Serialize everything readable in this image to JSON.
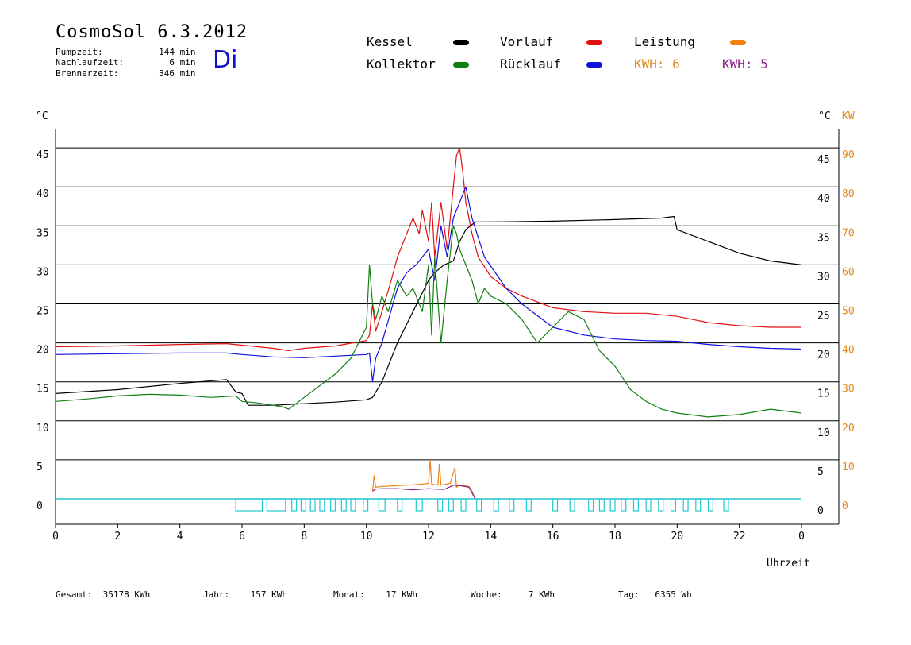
{
  "header": {
    "title": "CosmoSol 6.3.2012",
    "day": "Di",
    "stats": [
      {
        "label": "Pumpzeit:",
        "value": "144",
        "unit": "min"
      },
      {
        "label": "Nachlaufzeit:",
        "value": "6",
        "unit": "min"
      },
      {
        "label": "Brennerzeit:",
        "value": "346",
        "unit": "min"
      }
    ]
  },
  "legend": {
    "kessel": {
      "label": "Kessel",
      "color": "#000000"
    },
    "vorlauf": {
      "label": "Vorlauf",
      "color": "#e01010"
    },
    "leistung": {
      "label": "Leistung",
      "color": "#f08010"
    },
    "kollektor": {
      "label": "Kollektor",
      "color": "#108010"
    },
    "ruecklauf": {
      "label": "Rücklauf",
      "color": "#1010e0"
    },
    "kwh1": "KWH: 6",
    "kwh1_color": "#e08a20",
    "kwh2": "KWH: 5",
    "kwh2_color": "#8a208a"
  },
  "axes": {
    "left_unit": "°C",
    "right_unit_c": "°C",
    "right_unit_kw": "KW",
    "x_label": "Uhrzeit"
  },
  "footer": {
    "gesamt": "Gesamt:  35178 KWh",
    "jahr": "Jahr:    157 KWh",
    "monat": "Monat:    17 KWh",
    "woche": "Woche:     7 KWh",
    "tag": "Tag:   6355 Wh"
  },
  "chart_data": {
    "type": "line",
    "title": "CosmoSol 6.3.2012",
    "xlabel": "Uhrzeit",
    "ylabel": "°C",
    "y2label": "KW",
    "xlim": [
      0,
      24
    ],
    "ylim": [
      -3,
      48
    ],
    "y2lim": [
      -6,
      96
    ],
    "x_ticks": [
      "0",
      "2",
      "4",
      "6",
      "8",
      "10",
      "12",
      "14",
      "16",
      "18",
      "20",
      "22",
      "0"
    ],
    "y_ticks": [
      0,
      5,
      10,
      15,
      20,
      25,
      30,
      35,
      40,
      45
    ],
    "y2_ticks": [
      0,
      10,
      20,
      30,
      40,
      50,
      60,
      70,
      80,
      90
    ],
    "grid": true,
    "series": [
      {
        "name": "Kessel",
        "color": "#000000",
        "x": [
          0,
          2,
          4,
          5.5,
          5.8,
          6,
          6.2,
          7,
          8,
          9,
          10,
          10.2,
          10.5,
          11,
          11.5,
          12,
          12.2,
          12.5,
          12.8,
          13,
          13.2,
          13.5,
          14,
          16,
          18,
          19.5,
          19.9,
          20,
          21,
          22,
          23,
          24
        ],
        "y": [
          13.5,
          14,
          14.8,
          15.3,
          13.7,
          13.5,
          12,
          12,
          12.2,
          12.4,
          12.7,
          13,
          15,
          20,
          24,
          28,
          29,
          30,
          30.5,
          33,
          34.5,
          35.5,
          35.5,
          35.6,
          35.8,
          36,
          36.2,
          34.5,
          33,
          31.5,
          30.5,
          30
        ]
      },
      {
        "name": "Vorlauf",
        "color": "#e01010",
        "x": [
          0,
          2,
          4,
          5.5,
          6,
          7,
          7.5,
          8,
          9,
          10,
          10.1,
          10.2,
          10.3,
          10.5,
          10.8,
          11,
          11.2,
          11.5,
          11.7,
          11.8,
          12,
          12.1,
          12.2,
          12.4,
          12.6,
          12.8,
          12.9,
          13,
          13.1,
          13.2,
          13.4,
          13.6,
          14,
          14.5,
          15,
          16,
          17,
          18,
          19,
          20,
          21,
          22,
          23,
          24
        ],
        "y": [
          19.5,
          19.6,
          19.8,
          19.9,
          19.7,
          19.3,
          19.0,
          19.3,
          19.6,
          20.3,
          21,
          25,
          21.5,
          24,
          28,
          31,
          33,
          36,
          34,
          37,
          33,
          38,
          31,
          38,
          32,
          40,
          44,
          45,
          42,
          38,
          34,
          31,
          28.5,
          27,
          26,
          24.5,
          24,
          23.8,
          23.8,
          23.4,
          22.6,
          22.2,
          22,
          22
        ]
      },
      {
        "name": "Rücklauf",
        "color": "#1010e0",
        "x": [
          0,
          2,
          4,
          5.5,
          6,
          7,
          8,
          9,
          10,
          10.1,
          10.2,
          10.3,
          10.5,
          11,
          11.3,
          11.6,
          12,
          12.2,
          12.4,
          12.6,
          12.8,
          13,
          13.2,
          13.4,
          13.8,
          14.5,
          15,
          16,
          17,
          18,
          19,
          20,
          21,
          22,
          23,
          24
        ],
        "y": [
          18.5,
          18.6,
          18.7,
          18.7,
          18.5,
          18.2,
          18.1,
          18.3,
          18.5,
          18.7,
          15,
          18,
          20,
          27,
          29,
          30,
          32,
          28,
          35,
          31,
          36,
          38,
          40,
          36,
          31,
          27,
          25,
          22,
          21,
          20.5,
          20.3,
          20.2,
          19.8,
          19.5,
          19.3,
          19.2
        ]
      },
      {
        "name": "Kollektor",
        "color": "#108010",
        "x": [
          0,
          1,
          2,
          3,
          4,
          5,
          5.8,
          6,
          6.5,
          7,
          7.3,
          7.5,
          8,
          9,
          9.5,
          10,
          10.1,
          10.2,
          10.3,
          10.5,
          10.7,
          11,
          11.3,
          11.5,
          11.7,
          11.8,
          12,
          12.1,
          12.2,
          12.4,
          12.6,
          12.8,
          12.9,
          13,
          13.2,
          13.4,
          13.6,
          13.8,
          14,
          14.5,
          15,
          15.5,
          16,
          16.5,
          17,
          17.5,
          18,
          18.5,
          19,
          19.5,
          20,
          21,
          22,
          23,
          24
        ],
        "y": [
          12.5,
          12.8,
          13.2,
          13.4,
          13.3,
          13.0,
          13.2,
          12.5,
          12.3,
          12.0,
          11.8,
          11.5,
          13,
          16,
          18,
          22,
          30,
          25,
          23,
          26,
          24,
          28,
          26,
          27,
          25,
          24,
          30,
          21,
          31,
          20,
          28,
          35,
          34,
          32,
          30,
          28,
          25,
          27,
          26,
          25,
          23,
          20,
          22,
          24,
          23,
          19,
          17,
          14,
          12.5,
          11.5,
          11,
          10.5,
          10.8,
          11.5,
          11
        ]
      }
    ],
    "power": {
      "name": "Leistung",
      "color": "#f08010",
      "x": [
        10.2,
        10.25,
        10.3,
        10.5,
        11,
        11.5,
        11.8,
        12,
        12.05,
        12.1,
        12.3,
        12.35,
        12.4,
        12.7,
        12.85,
        12.9,
        13,
        13.3,
        13.4,
        13.5
      ],
      "y": [
        2,
        6,
        3,
        3.2,
        3.4,
        3.6,
        3.8,
        4,
        10,
        3.8,
        3.5,
        9,
        3.5,
        4,
        8,
        3,
        3.5,
        3.2,
        2,
        0
      ]
    },
    "pump": {
      "name": "KWH: 5",
      "color": "#8a208a",
      "x": [
        10.2,
        10.3,
        10.5,
        11,
        11.5,
        12,
        12.2,
        12.5,
        12.8,
        13,
        13.3,
        13.5
      ],
      "y": [
        2,
        2.5,
        2.6,
        2.6,
        2.3,
        2.6,
        2.5,
        2.4,
        3.5,
        3.4,
        3,
        0
      ]
    },
    "burner_color": "#20c8d0",
    "burner_intervals": [
      [
        5.8,
        6.65
      ],
      [
        6.8,
        7.4
      ],
      [
        7.6,
        7.75
      ],
      [
        7.9,
        8.05
      ],
      [
        8.2,
        8.35
      ],
      [
        8.5,
        8.65
      ],
      [
        8.85,
        9.0
      ],
      [
        9.2,
        9.35
      ],
      [
        9.5,
        9.65
      ],
      [
        9.9,
        10.05
      ],
      [
        10.4,
        10.6
      ],
      [
        11.0,
        11.15
      ],
      [
        11.6,
        11.8
      ],
      [
        12.3,
        12.45
      ],
      [
        12.65,
        12.8
      ],
      [
        13.05,
        13.2
      ],
      [
        13.55,
        13.7
      ],
      [
        14.1,
        14.25
      ],
      [
        14.6,
        14.75
      ],
      [
        15.15,
        15.3
      ],
      [
        16.0,
        16.15
      ],
      [
        16.55,
        16.7
      ],
      [
        17.15,
        17.3
      ],
      [
        17.5,
        17.65
      ],
      [
        17.85,
        18.0
      ],
      [
        18.2,
        18.35
      ],
      [
        18.6,
        18.75
      ],
      [
        19.0,
        19.15
      ],
      [
        19.4,
        19.55
      ],
      [
        19.8,
        19.95
      ],
      [
        20.2,
        20.35
      ],
      [
        20.6,
        20.75
      ],
      [
        21.0,
        21.15
      ],
      [
        21.5,
        21.65
      ]
    ]
  }
}
